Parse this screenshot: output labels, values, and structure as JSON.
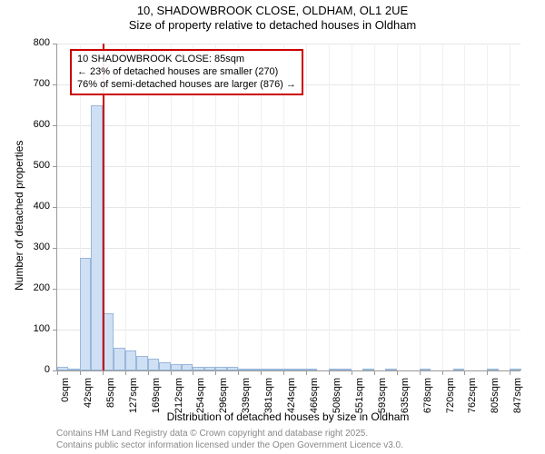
{
  "title": {
    "line1": "10, SHADOWBROOK CLOSE, OLDHAM, OL1 2UE",
    "line2": "Size of property relative to detached houses in Oldham"
  },
  "chart": {
    "type": "histogram",
    "bar_fill": "#cfe0f5",
    "bar_stroke": "#9ab7da",
    "grid_color": "#e6e6e6",
    "axis_color": "#999999",
    "background": "#ffffff",
    "marker_color": "#cc0000",
    "text_color": "#000000",
    "y": {
      "title": "Number of detached properties",
      "min": 0,
      "max": 800,
      "tick_step": 100,
      "ticks": [
        0,
        100,
        200,
        300,
        400,
        500,
        600,
        700,
        800
      ]
    },
    "x": {
      "title": "Distribution of detached houses by size in Oldham",
      "min": 0,
      "max": 868,
      "bin_width": 21.2,
      "label_step": 42.4,
      "labels": [
        "0sqm",
        "42sqm",
        "85sqm",
        "127sqm",
        "169sqm",
        "212sqm",
        "254sqm",
        "296sqm",
        "339sqm",
        "381sqm",
        "424sqm",
        "466sqm",
        "508sqm",
        "551sqm",
        "593sqm",
        "635sqm",
        "678sqm",
        "720sqm",
        "762sqm",
        "805sqm",
        "847sqm"
      ]
    },
    "bars": [
      10,
      5,
      275,
      650,
      140,
      55,
      50,
      35,
      30,
      20,
      15,
      15,
      10,
      8,
      8,
      8,
      5,
      5,
      5,
      5,
      3,
      3,
      3,
      0,
      2,
      2,
      0,
      2,
      0,
      2,
      0,
      0,
      2,
      0,
      0,
      2,
      0,
      0,
      2,
      0,
      2
    ],
    "marker": {
      "x_value": 85,
      "callout": {
        "line1": "10 SHADOWBROOK CLOSE: 85sqm",
        "line2": "← 23% of detached houses are smaller (270)",
        "line3": "76% of semi-detached houses are larger (876) →"
      }
    }
  },
  "footnote": {
    "line1": "Contains HM Land Registry data © Crown copyright and database right 2025.",
    "line2": "Contains public sector information licensed under the Open Government Licence v3.0."
  }
}
